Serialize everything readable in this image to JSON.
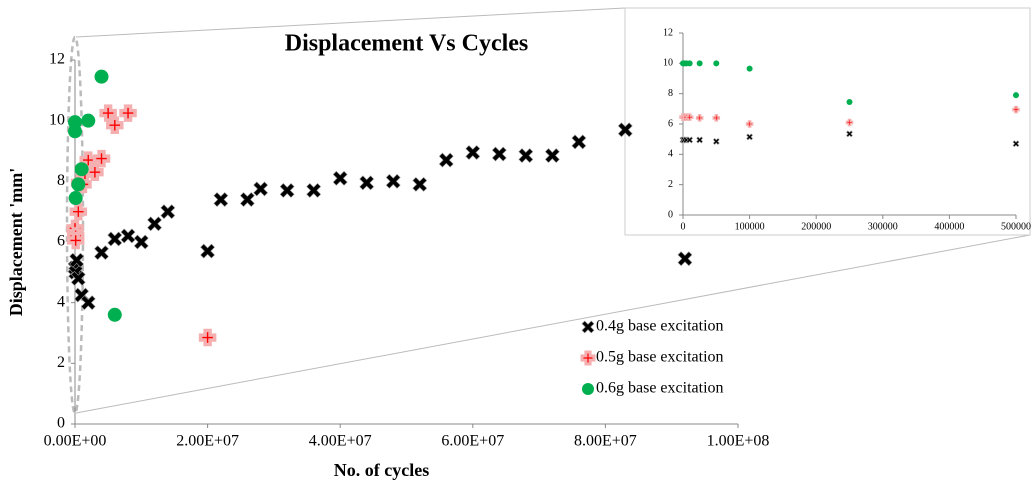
{
  "chart_data": [
    {
      "type": "scatter",
      "title": "Displacement Vs Cycles",
      "xlabel": "No. of cycles",
      "ylabel": "Displacement 'mm'",
      "xlim": [
        0,
        100000000
      ],
      "xticks": [
        {
          "value": 0,
          "label": "0.00E+00"
        },
        {
          "value": 20000000,
          "label": "2.00E+07"
        },
        {
          "value": 40000000,
          "label": "4.00E+07"
        },
        {
          "value": 60000000,
          "label": "6.00E+07"
        },
        {
          "value": 80000000,
          "label": "8.00E+07"
        },
        {
          "value": 100000000,
          "label": "1.00E+08"
        }
      ],
      "ylim": [
        0,
        12
      ],
      "yticks": [
        0,
        2,
        4,
        6,
        8,
        10,
        12
      ],
      "grid": false,
      "legend": "lower right",
      "series": [
        {
          "name": "0.4g base excitation",
          "color": "#000000",
          "marker": "x",
          "x": [
            0,
            100000,
            250000,
            500000,
            1000000,
            2000000,
            4000000,
            6000000,
            8000000,
            10000000,
            12000000,
            14000000,
            20000000,
            22000000,
            26000000,
            28000000,
            32000000,
            36000000,
            40000000,
            44000000,
            48000000,
            52000000,
            56000000,
            60000000,
            64000000,
            68000000,
            72000000,
            76000000,
            83000000,
            92000000
          ],
          "values": [
            5.15,
            5.0,
            5.4,
            4.8,
            4.25,
            4.0,
            5.65,
            6.1,
            6.2,
            6.0,
            6.6,
            7.0,
            5.7,
            7.4,
            7.4,
            7.75,
            7.7,
            7.7,
            8.1,
            7.95,
            8.0,
            7.9,
            8.7,
            8.95,
            8.9,
            8.85,
            8.85,
            9.3,
            9.7,
            5.45
          ]
        },
        {
          "name": "0.5g base excitation",
          "color": "#ff0000",
          "marker": "plus",
          "x": [
            0,
            100000,
            100000,
            500000,
            700000,
            1200000,
            1500000,
            2000000,
            3000000,
            4000000,
            5000000,
            6000000,
            8000000,
            20000000
          ],
          "values": [
            6.45,
            6.2,
            6.05,
            7.0,
            7.95,
            7.9,
            8.25,
            8.7,
            8.3,
            8.75,
            10.25,
            9.85,
            10.25,
            2.85
          ]
        },
        {
          "name": "0.6g base excitation",
          "color": "#00b050",
          "marker": "circle",
          "x": [
            0,
            0,
            100000,
            500000,
            1000000,
            2000000,
            4000000,
            6000000
          ],
          "values": [
            9.95,
            9.65,
            7.45,
            7.9,
            8.4,
            10.0,
            11.45,
            3.6
          ]
        }
      ]
    },
    {
      "type": "scatter",
      "xlim": [
        0,
        500000
      ],
      "xticks": [
        0,
        100000,
        200000,
        300000,
        400000,
        500000
      ],
      "ylim": [
        0,
        12
      ],
      "yticks": [
        0,
        2,
        4,
        6,
        8,
        10,
        12
      ],
      "grid": false,
      "series": [
        {
          "color": "#000000",
          "marker": "x",
          "x": [
            0,
            2000,
            5000,
            10000,
            25000,
            50000,
            100000,
            250000,
            500000
          ],
          "values": [
            4.95,
            4.95,
            4.95,
            4.95,
            4.95,
            4.85,
            5.15,
            5.35,
            4.7
          ]
        },
        {
          "color": "#ff0000",
          "marker": "plus",
          "x": [
            0,
            2000,
            5000,
            10000,
            25000,
            50000,
            100000,
            250000,
            500000
          ],
          "values": [
            6.45,
            6.45,
            6.45,
            6.45,
            6.4,
            6.4,
            6.0,
            6.1,
            6.95
          ]
        },
        {
          "color": "#00b050",
          "marker": "circle",
          "x": [
            0,
            2000,
            5000,
            10000,
            25000,
            50000,
            100000,
            250000,
            500000
          ],
          "values": [
            10.0,
            10.0,
            10.0,
            10.0,
            10.0,
            10.0,
            9.65,
            7.45,
            7.9
          ]
        }
      ]
    }
  ]
}
